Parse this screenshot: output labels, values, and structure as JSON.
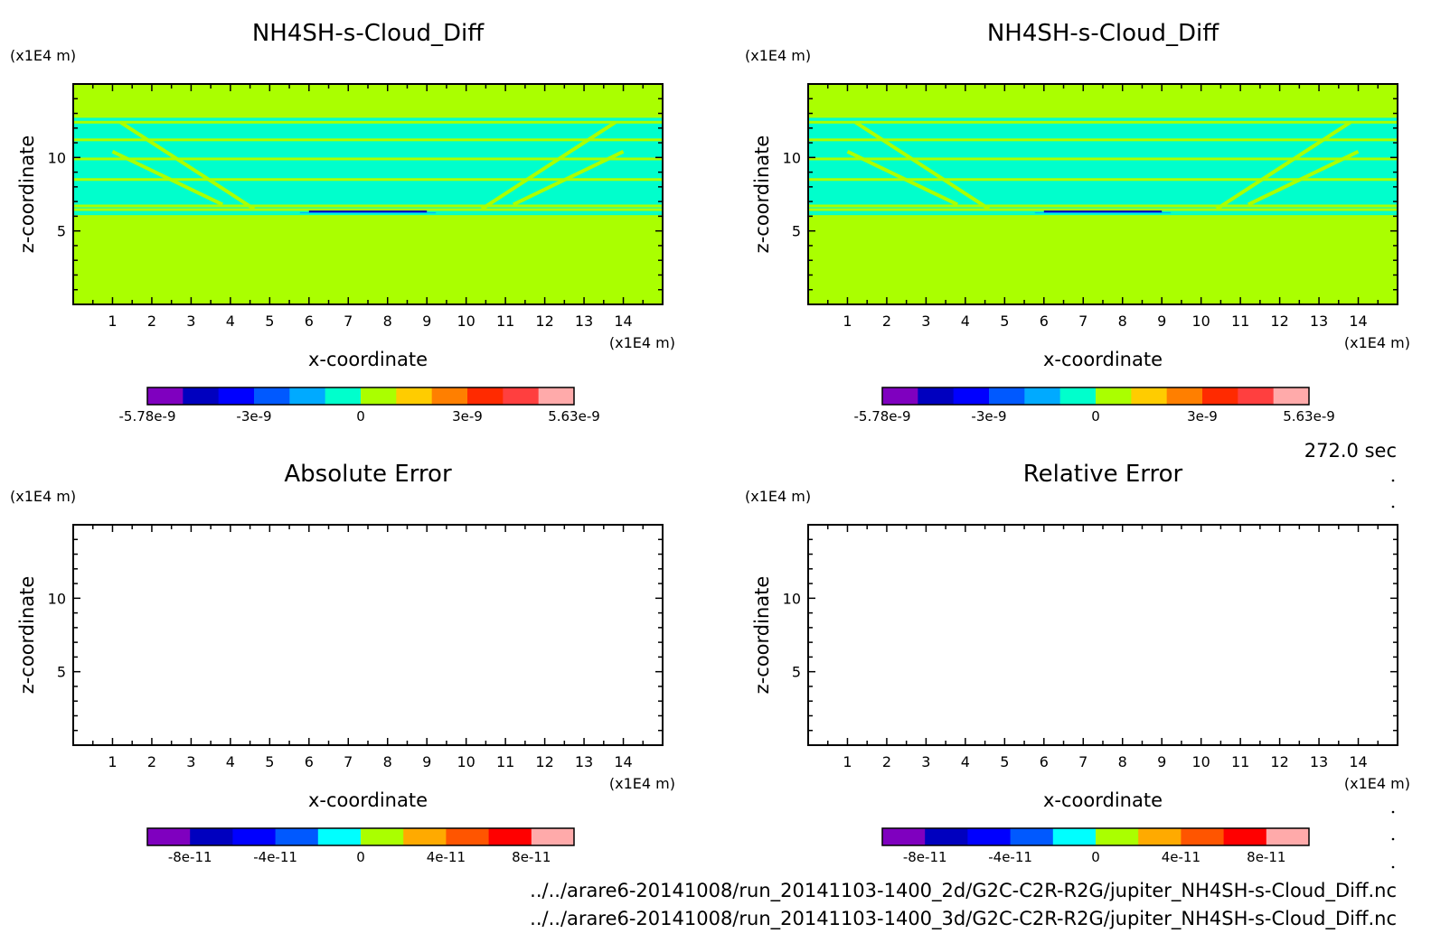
{
  "figure": {
    "time_label": "272.0 sec",
    "source_files": [
      "../../arare6-20141008/run_20141103-1400_2d/G2C-C2R-R2G/jupiter_NH4SH-s-Cloud_Diff.nc",
      "../../arare6-20141008/run_20141103-1400_3d/G2C-C2R-R2G/jupiter_NH4SH-s-Cloud_Diff.nc"
    ]
  },
  "colors": {
    "background_field": "#aaff00",
    "zero_band": "#00ffcc",
    "axis": "#000000",
    "palette_top": [
      "#7f00bf",
      "#0000bf",
      "#0000ff",
      "#0059ff",
      "#00aaff",
      "#00ffcc",
      "#aaff00",
      "#ffcc00",
      "#ff7f00",
      "#ff2a00",
      "#ff3f3f",
      "#ffaaaa"
    ],
    "palette_bottom": [
      "#7f00bf",
      "#0000bf",
      "#0000ff",
      "#0059ff",
      "#00ffff",
      "#aaff00",
      "#ffaa00",
      "#ff5500",
      "#ff0000",
      "#ffaaaa"
    ]
  },
  "chart_data": [
    {
      "type": "heatmap",
      "title": "NH4SH-s-Cloud_Diff",
      "xlabel": "x-coordinate",
      "ylabel": "z-coordinate",
      "x_unit": "(x1E4 m)",
      "y_unit": "(x1E4 m)",
      "xlim": [
        0,
        15
      ],
      "ylim": [
        0,
        15
      ],
      "x_ticks": [
        "1",
        "2",
        "3",
        "4",
        "5",
        "6",
        "7",
        "8",
        "9",
        "10",
        "11",
        "12",
        "13",
        "14"
      ],
      "y_ticks": [
        "5",
        "10"
      ],
      "colorbar": {
        "min": -5.78e-09,
        "max": 5.63e-09,
        "labels": [
          "-5.78e-9",
          "-3e-9",
          "0",
          "3e-9",
          "5.63e-9"
        ]
      },
      "field": {
        "background_value": 0,
        "cloud_layer_z": [
          6.2,
          12.7
        ],
        "note_min_region_x": [
          6,
          9
        ]
      }
    },
    {
      "type": "heatmap",
      "title": "NH4SH-s-Cloud_Diff",
      "xlabel": "x-coordinate",
      "ylabel": "z-coordinate",
      "x_unit": "(x1E4 m)",
      "y_unit": "(x1E4 m)",
      "xlim": [
        0,
        15
      ],
      "ylim": [
        0,
        15
      ],
      "x_ticks": [
        "1",
        "2",
        "3",
        "4",
        "5",
        "6",
        "7",
        "8",
        "9",
        "10",
        "11",
        "12",
        "13",
        "14"
      ],
      "y_ticks": [
        "5",
        "10"
      ],
      "colorbar": {
        "min": -5.78e-09,
        "max": 5.63e-09,
        "labels": [
          "-5.78e-9",
          "-3e-9",
          "0",
          "3e-9",
          "5.63e-9"
        ]
      },
      "field": {
        "background_value": 0,
        "cloud_layer_z": [
          6.2,
          12.7
        ],
        "note_min_region_x": [
          6,
          9
        ]
      }
    },
    {
      "type": "heatmap",
      "title": "Absolute Error",
      "xlabel": "x-coordinate",
      "ylabel": "z-coordinate",
      "x_unit": "(x1E4 m)",
      "y_unit": "(x1E4 m)",
      "xlim": [
        0,
        15
      ],
      "ylim": [
        0,
        15
      ],
      "x_ticks": [
        "1",
        "2",
        "3",
        "4",
        "5",
        "6",
        "7",
        "8",
        "9",
        "10",
        "11",
        "12",
        "13",
        "14"
      ],
      "y_ticks": [
        "5",
        "10"
      ],
      "colorbar": {
        "min": -1e-10,
        "max": 1e-10,
        "labels": [
          "-8e-11",
          "-4e-11",
          "0",
          "4e-11",
          "8e-11"
        ]
      },
      "field": "empty"
    },
    {
      "type": "heatmap",
      "title": "Relative Error",
      "xlabel": "x-coordinate",
      "ylabel": "z-coordinate",
      "x_unit": "(x1E4 m)",
      "y_unit": "(x1E4 m)",
      "xlim": [
        0,
        15
      ],
      "ylim": [
        0,
        15
      ],
      "x_ticks": [
        "1",
        "2",
        "3",
        "4",
        "5",
        "6",
        "7",
        "8",
        "9",
        "10",
        "11",
        "12",
        "13",
        "14"
      ],
      "y_ticks": [
        "5",
        "10"
      ],
      "colorbar": {
        "min": -1e-10,
        "max": 1e-10,
        "labels": [
          "-8e-11",
          "-4e-11",
          "0",
          "4e-11",
          "8e-11"
        ]
      },
      "field": "empty"
    }
  ]
}
